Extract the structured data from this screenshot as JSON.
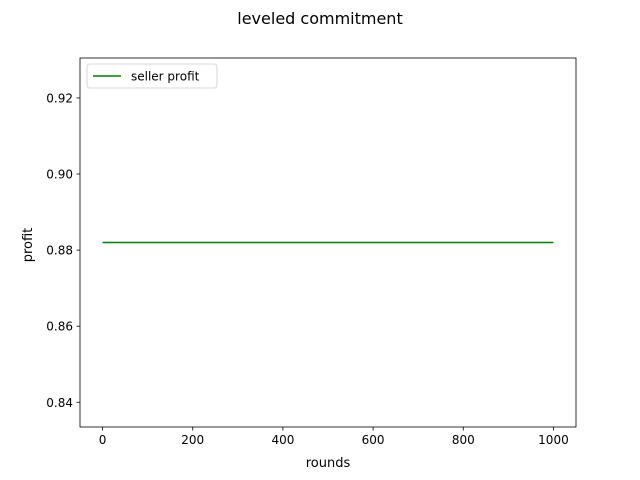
{
  "chart_data": {
    "type": "line",
    "title": "leveled commitment",
    "xlabel": "rounds",
    "ylabel": "profit",
    "xlim": [
      -50,
      1050
    ],
    "ylim": [
      0.8335,
      0.9305
    ],
    "xticks": [
      0,
      200,
      400,
      600,
      800,
      1000
    ],
    "xtick_labels": [
      "0",
      "200",
      "400",
      "600",
      "800",
      "1000"
    ],
    "yticks": [
      0.84,
      0.86,
      0.88,
      0.9,
      0.92
    ],
    "ytick_labels": [
      "0.84",
      "0.86",
      "0.88",
      "0.90",
      "0.92"
    ],
    "grid": false,
    "legend_position": "upper left",
    "series": [
      {
        "name": "seller profit",
        "color": "#008000",
        "x": [
          0,
          1000
        ],
        "y": [
          0.882,
          0.882
        ]
      }
    ]
  }
}
